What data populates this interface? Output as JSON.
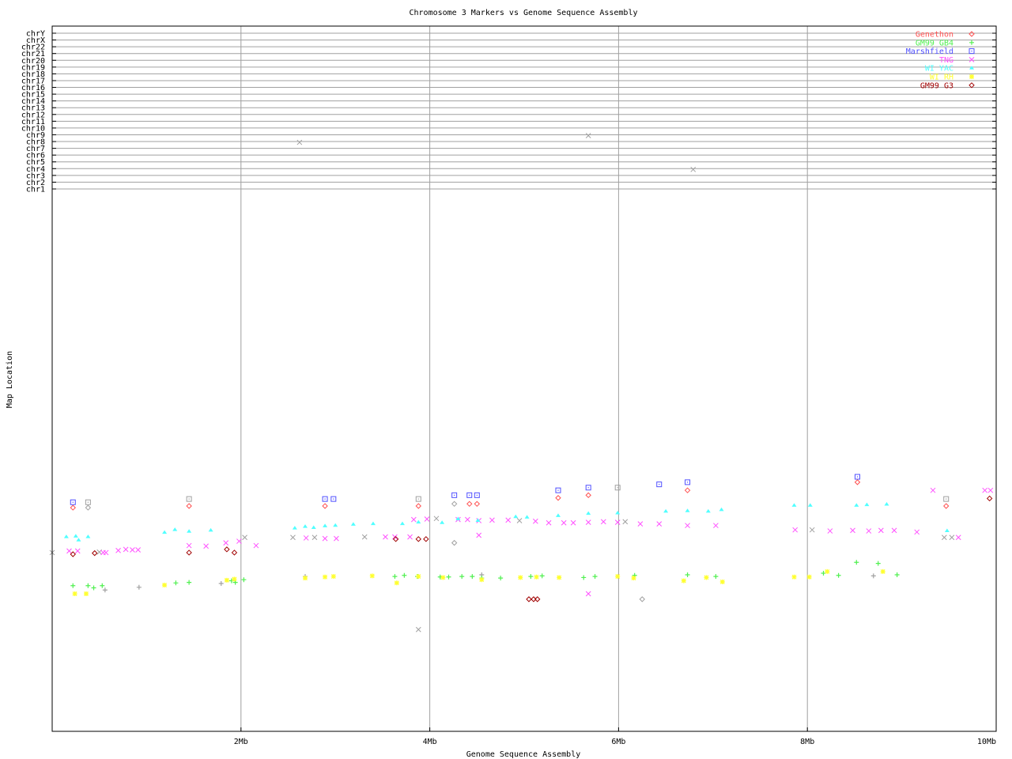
{
  "chart_data": {
    "type": "scatter",
    "title": "Chromosome 3 Markers vs Genome Sequence Assembly",
    "xlabel": "Genome Sequence Assembly",
    "ylabel": "Map Location",
    "xlim": [
      0,
      10
    ],
    "x_unit": "Mb",
    "x_ticks": [
      "2Mb",
      "4Mb",
      "6Mb",
      "8Mb",
      "10Mb"
    ],
    "x_tick_values": [
      2,
      4,
      6,
      8,
      10
    ],
    "grid": true,
    "legend_position": "top-right",
    "chromosome_labels": [
      "chr1",
      "chr2",
      "chr3",
      "chr4",
      "chr5",
      "chr6",
      "chr7",
      "chr8",
      "chr9",
      "chr10",
      "chr11",
      "chr12",
      "chr13",
      "chr14",
      "chr15",
      "chr16",
      "chr17",
      "chr18",
      "chr19",
      "chr20",
      "chr21",
      "chr22",
      "chrX",
      "chrY"
    ],
    "map_location_ylim": [
      0,
      100
    ],
    "other_color": "#a0a0a0",
    "series": [
      {
        "name": "Genethon",
        "color": "#ff5050",
        "marker": "diamond",
        "points": [
          [
            0.22,
            41.3
          ],
          [
            1.45,
            41.6
          ],
          [
            2.89,
            41.6
          ],
          [
            3.88,
            41.6
          ],
          [
            4.42,
            42.0
          ],
          [
            4.5,
            42.0
          ],
          [
            5.36,
            43.1
          ],
          [
            5.68,
            43.6
          ],
          [
            6.73,
            44.5
          ],
          [
            8.53,
            46.0
          ],
          [
            9.47,
            41.6
          ]
        ],
        "other_points": [
          [
            0.38,
            41.3
          ],
          [
            4.26,
            42.0
          ]
        ]
      },
      {
        "name": "GM99 GB4",
        "color": "#50f050",
        "marker": "plus",
        "points": [
          [
            0.22,
            26.9
          ],
          [
            0.38,
            26.9
          ],
          [
            0.44,
            26.5
          ],
          [
            0.53,
            26.9
          ],
          [
            1.31,
            27.4
          ],
          [
            1.45,
            27.5
          ],
          [
            1.9,
            27.8
          ],
          [
            1.94,
            27.5
          ],
          [
            2.03,
            28.0
          ],
          [
            3.63,
            28.6
          ],
          [
            3.73,
            28.8
          ],
          [
            3.87,
            28.6
          ],
          [
            4.11,
            28.5
          ],
          [
            4.2,
            28.5
          ],
          [
            4.34,
            28.6
          ],
          [
            4.45,
            28.6
          ],
          [
            4.55,
            28.3
          ],
          [
            4.75,
            28.3
          ],
          [
            5.07,
            28.6
          ],
          [
            5.19,
            28.7
          ],
          [
            5.63,
            28.4
          ],
          [
            5.75,
            28.6
          ],
          [
            6.17,
            28.8
          ],
          [
            6.73,
            28.9
          ],
          [
            7.03,
            28.6
          ],
          [
            8.17,
            29.2
          ],
          [
            8.33,
            28.8
          ],
          [
            8.52,
            31.2
          ],
          [
            8.75,
            31.0
          ],
          [
            8.95,
            28.9
          ]
        ],
        "other_points": [
          [
            0.56,
            26.1
          ],
          [
            0.92,
            26.6
          ],
          [
            1.79,
            27.3
          ],
          [
            2.68,
            28.6
          ],
          [
            4.55,
            28.9
          ],
          [
            8.7,
            28.7
          ]
        ]
      },
      {
        "name": "Marshfield",
        "color": "#5050ff",
        "marker": "square",
        "points": [
          [
            0.22,
            42.3
          ],
          [
            2.89,
            42.9
          ],
          [
            2.98,
            42.9
          ],
          [
            4.26,
            43.6
          ],
          [
            4.42,
            43.6
          ],
          [
            4.5,
            43.6
          ],
          [
            5.36,
            44.5
          ],
          [
            5.68,
            45.0
          ],
          [
            6.43,
            45.6
          ],
          [
            6.73,
            46.0
          ],
          [
            8.53,
            47.0
          ]
        ],
        "other_points": [
          [
            0.38,
            42.3
          ],
          [
            1.45,
            42.9
          ],
          [
            3.88,
            42.9
          ],
          [
            5.99,
            45.0
          ],
          [
            9.47,
            42.9
          ]
        ]
      },
      {
        "name": "TNG",
        "color": "#ff50ff",
        "marker": "cross",
        "points": [
          [
            0.18,
            33.3
          ],
          [
            0.27,
            33.3
          ],
          [
            0.54,
            33.0
          ],
          [
            0.57,
            33.0
          ],
          [
            0.7,
            33.4
          ],
          [
            0.78,
            33.6
          ],
          [
            0.85,
            33.5
          ],
          [
            0.91,
            33.5
          ],
          [
            1.45,
            34.3
          ],
          [
            1.63,
            34.2
          ],
          [
            1.84,
            34.8
          ],
          [
            1.98,
            35.1
          ],
          [
            2.16,
            34.3
          ],
          [
            2.69,
            35.7
          ],
          [
            2.89,
            35.6
          ],
          [
            3.01,
            35.6
          ],
          [
            3.53,
            35.9
          ],
          [
            3.63,
            35.9
          ],
          [
            3.79,
            35.9
          ],
          [
            3.83,
            39.1
          ],
          [
            3.97,
            39.2
          ],
          [
            4.3,
            39.1
          ],
          [
            4.4,
            39.1
          ],
          [
            4.52,
            38.9
          ],
          [
            4.66,
            39.0
          ],
          [
            4.83,
            39.0
          ],
          [
            4.52,
            36.2
          ],
          [
            5.12,
            38.8
          ],
          [
            5.26,
            38.5
          ],
          [
            5.42,
            38.5
          ],
          [
            5.52,
            38.5
          ],
          [
            5.68,
            38.6
          ],
          [
            5.84,
            38.7
          ],
          [
            5.99,
            38.6
          ],
          [
            6.23,
            38.3
          ],
          [
            6.43,
            38.3
          ],
          [
            6.73,
            38.0
          ],
          [
            7.03,
            38.0
          ],
          [
            7.87,
            37.2
          ],
          [
            8.24,
            37.0
          ],
          [
            8.48,
            37.1
          ],
          [
            8.65,
            37.0
          ],
          [
            8.78,
            37.1
          ],
          [
            8.92,
            37.1
          ],
          [
            9.16,
            36.8
          ],
          [
            9.33,
            44.5
          ],
          [
            9.88,
            44.5
          ],
          [
            9.94,
            44.5
          ],
          [
            9.6,
            35.8
          ],
          [
            5.68,
            25.4
          ]
        ],
        "other_points": [
          [
            0.0,
            33.0
          ],
          [
            0.5,
            33.1
          ],
          [
            2.04,
            35.8
          ],
          [
            2.55,
            35.8
          ],
          [
            2.78,
            35.8
          ],
          [
            3.31,
            35.9
          ],
          [
            4.07,
            39.3
          ],
          [
            4.95,
            38.9
          ],
          [
            6.07,
            38.7
          ],
          [
            8.05,
            37.2
          ],
          [
            9.45,
            35.8
          ],
          [
            9.53,
            35.8
          ],
          [
            3.88,
            18.8
          ]
        ],
        "other_chromosome_hits": [
          {
            "x": 2.62,
            "chromosome": "chr8"
          },
          {
            "x": 5.68,
            "chromosome": "chr9"
          },
          {
            "x": 6.79,
            "chromosome": "chr4"
          }
        ]
      },
      {
        "name": "WI YAC",
        "color": "#50ffff",
        "marker": "triangle",
        "points": [
          [
            0.15,
            35.9
          ],
          [
            0.25,
            36.0
          ],
          [
            0.28,
            35.3
          ],
          [
            0.38,
            35.9
          ],
          [
            1.19,
            36.7
          ],
          [
            1.3,
            37.2
          ],
          [
            1.45,
            36.9
          ],
          [
            1.68,
            37.1
          ],
          [
            2.57,
            37.5
          ],
          [
            2.68,
            37.8
          ],
          [
            2.77,
            37.6
          ],
          [
            2.89,
            37.9
          ],
          [
            3.0,
            38.0
          ],
          [
            3.19,
            38.2
          ],
          [
            3.4,
            38.3
          ],
          [
            3.71,
            38.3
          ],
          [
            3.88,
            38.6
          ],
          [
            4.13,
            38.5
          ],
          [
            4.3,
            39.2
          ],
          [
            4.51,
            38.9
          ],
          [
            4.91,
            39.6
          ],
          [
            5.03,
            39.5
          ],
          [
            5.36,
            39.8
          ],
          [
            5.68,
            40.2
          ],
          [
            5.99,
            40.3
          ],
          [
            6.5,
            40.6
          ],
          [
            6.73,
            40.7
          ],
          [
            6.95,
            40.6
          ],
          [
            7.09,
            40.9
          ],
          [
            7.86,
            41.7
          ],
          [
            8.03,
            41.7
          ],
          [
            8.52,
            41.7
          ],
          [
            8.63,
            41.8
          ],
          [
            8.84,
            41.9
          ],
          [
            9.48,
            37.0
          ]
        ],
        "other_points": []
      },
      {
        "name": "WI RH",
        "color": "#ffff30",
        "marker": "star",
        "points": [
          [
            0.24,
            25.4
          ],
          [
            0.36,
            25.4
          ],
          [
            1.19,
            27.0
          ],
          [
            1.85,
            27.9
          ],
          [
            1.93,
            28.1
          ],
          [
            2.68,
            28.3
          ],
          [
            2.89,
            28.5
          ],
          [
            2.98,
            28.6
          ],
          [
            3.39,
            28.7
          ],
          [
            3.65,
            27.4
          ],
          [
            3.88,
            28.6
          ],
          [
            4.14,
            28.4
          ],
          [
            4.55,
            28.0
          ],
          [
            4.96,
            28.4
          ],
          [
            5.13,
            28.5
          ],
          [
            5.37,
            28.4
          ],
          [
            5.99,
            28.6
          ],
          [
            6.16,
            28.3
          ],
          [
            6.69,
            27.8
          ],
          [
            6.93,
            28.4
          ],
          [
            7.1,
            27.6
          ],
          [
            7.86,
            28.5
          ],
          [
            8.02,
            28.5
          ],
          [
            8.21,
            29.5
          ],
          [
            8.8,
            29.5
          ]
        ],
        "other_points": []
      },
      {
        "name": "GM99 G3",
        "color": "#a00000",
        "marker": "diamond",
        "points": [
          [
            0.22,
            32.7
          ],
          [
            0.45,
            32.9
          ],
          [
            1.45,
            33.0
          ],
          [
            1.85,
            33.6
          ],
          [
            1.93,
            33.0
          ],
          [
            3.64,
            35.5
          ],
          [
            3.88,
            35.5
          ],
          [
            3.96,
            35.5
          ],
          [
            5.05,
            24.4
          ],
          [
            5.1,
            24.4
          ],
          [
            5.14,
            24.4
          ],
          [
            9.93,
            43.0
          ]
        ],
        "other_points": [
          [
            4.26,
            34.8
          ],
          [
            6.25,
            24.4
          ]
        ]
      }
    ]
  }
}
